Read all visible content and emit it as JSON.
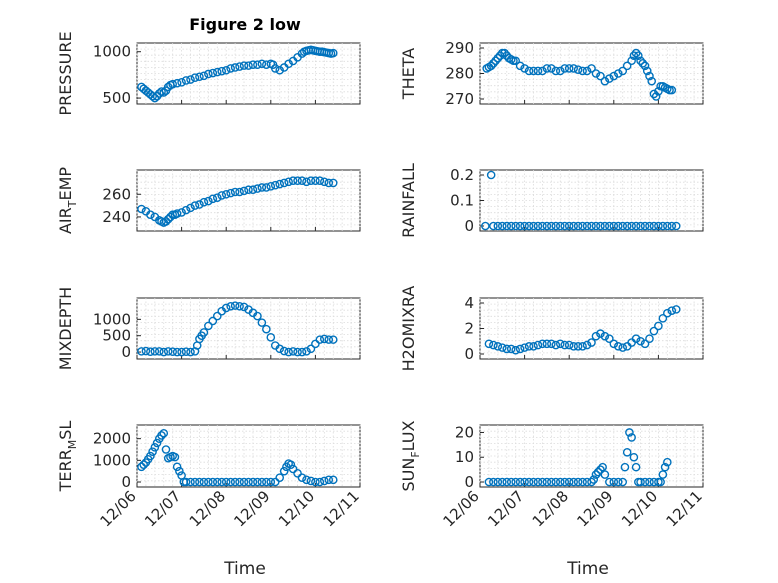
{
  "figure": {
    "title": "Figure 2 low",
    "marker_color": "#0072BD"
  },
  "x_axis": {
    "label": "Time",
    "tick_values": [
      0,
      1,
      2,
      3,
      4,
      5
    ],
    "tick_labels": [
      "12/06",
      "12/07",
      "12/08",
      "12/09",
      "12/10",
      "12/11"
    ],
    "range": [
      0,
      5
    ]
  },
  "chart_data": [
    {
      "type": "scatter",
      "ylabel": "PRESSURE",
      "ylabel_parts": [
        "PRESSURE"
      ],
      "ylim": [
        490,
        1040
      ],
      "yticks": [
        500,
        1000
      ],
      "x": [
        0.1,
        0.15,
        0.2,
        0.25,
        0.3,
        0.35,
        0.4,
        0.45,
        0.5,
        0.55,
        0.6,
        0.65,
        0.7,
        0.75,
        0.8,
        0.9,
        1.0,
        1.1,
        1.2,
        1.3,
        1.4,
        1.5,
        1.6,
        1.7,
        1.8,
        1.9,
        2.0,
        2.1,
        2.2,
        2.3,
        2.4,
        2.5,
        2.6,
        2.7,
        2.8,
        2.9,
        3.0,
        3.05,
        3.1,
        3.2,
        3.3,
        3.4,
        3.5,
        3.6,
        3.7,
        3.75,
        3.8,
        3.85,
        3.9,
        3.95,
        4.0,
        4.05,
        4.1,
        4.15,
        4.2,
        4.25,
        4.3,
        4.35,
        4.4
      ],
      "y": [
        620,
        600,
        580,
        560,
        540,
        520,
        500,
        520,
        550,
        570,
        560,
        580,
        620,
        640,
        650,
        660,
        670,
        690,
        700,
        720,
        730,
        740,
        760,
        770,
        780,
        790,
        800,
        820,
        830,
        840,
        850,
        850,
        860,
        860,
        870,
        860,
        870,
        860,
        820,
        800,
        830,
        870,
        900,
        940,
        980,
        1000,
        1010,
        1015,
        1020,
        1015,
        1010,
        1005,
        1000,
        1000,
        995,
        990,
        985,
        980,
        985
      ]
    },
    {
      "type": "scatter",
      "ylabel": "THETA",
      "ylabel_parts": [
        "THETA"
      ],
      "ylim": [
        270,
        290
      ],
      "yticks": [
        270,
        280,
        290
      ],
      "x": [
        0.15,
        0.2,
        0.25,
        0.3,
        0.35,
        0.4,
        0.45,
        0.5,
        0.55,
        0.6,
        0.65,
        0.7,
        0.75,
        0.8,
        0.9,
        1.0,
        1.1,
        1.2,
        1.3,
        1.4,
        1.5,
        1.6,
        1.7,
        1.8,
        1.9,
        2.0,
        2.1,
        2.2,
        2.3,
        2.4,
        2.5,
        2.6,
        2.7,
        2.8,
        2.9,
        3.0,
        3.1,
        3.2,
        3.3,
        3.4,
        3.45,
        3.5,
        3.55,
        3.6,
        3.65,
        3.7,
        3.75,
        3.8,
        3.85,
        3.9,
        3.95,
        4.0,
        4.05,
        4.1,
        4.15,
        4.2,
        4.25,
        4.3
      ],
      "y": [
        282,
        282.5,
        283,
        284,
        285,
        286,
        287,
        288,
        288,
        287,
        286,
        285.5,
        285,
        285,
        283,
        282,
        281,
        281,
        281,
        281,
        282,
        282,
        281,
        281,
        282,
        282,
        282,
        281.5,
        281,
        281,
        282,
        280,
        279,
        277,
        278,
        279,
        280,
        281,
        283,
        285,
        287,
        288,
        287,
        285,
        284,
        283,
        281,
        279,
        277,
        272,
        271,
        273,
        275,
        275,
        274.5,
        274,
        273.5,
        273.5
      ]
    },
    {
      "type": "scatter",
      "ylabel": "AIR_TEMP",
      "ylabel_parts": [
        "AIR",
        "T",
        "EMP"
      ],
      "ylim": [
        232,
        277
      ],
      "yticks": [
        240,
        260
      ],
      "x": [
        0.1,
        0.2,
        0.3,
        0.4,
        0.5,
        0.55,
        0.6,
        0.65,
        0.7,
        0.75,
        0.8,
        0.85,
        0.9,
        1.0,
        1.1,
        1.2,
        1.3,
        1.4,
        1.5,
        1.6,
        1.7,
        1.8,
        1.9,
        2.0,
        2.1,
        2.2,
        2.3,
        2.4,
        2.5,
        2.6,
        2.7,
        2.8,
        2.9,
        3.0,
        3.1,
        3.2,
        3.3,
        3.4,
        3.5,
        3.6,
        3.7,
        3.8,
        3.9,
        4.0,
        4.1,
        4.2,
        4.3,
        4.4
      ],
      "y": [
        247,
        245,
        242,
        240,
        237,
        236,
        235,
        236,
        238,
        240,
        242,
        242,
        243,
        244,
        246,
        248,
        250,
        251,
        253,
        254,
        256,
        257,
        259,
        260,
        261,
        262,
        262,
        263,
        264,
        264,
        265,
        266,
        266,
        267,
        268,
        269,
        270,
        271,
        272,
        272,
        272,
        271,
        272,
        272,
        272,
        271,
        270,
        270
      ]
    },
    {
      "type": "scatter",
      "ylabel": "RAINFALL",
      "ylabel_parts": [
        "RAINFALL"
      ],
      "ylim": [
        0,
        0.2
      ],
      "yticks": [
        0,
        0.1,
        0.2
      ],
      "x": [
        0.12,
        0.25,
        0.3,
        0.4,
        0.5,
        0.6,
        0.7,
        0.8,
        0.9,
        1.0,
        1.1,
        1.2,
        1.3,
        1.4,
        1.5,
        1.6,
        1.7,
        1.8,
        1.9,
        2.0,
        2.1,
        2.2,
        2.3,
        2.4,
        2.5,
        2.6,
        2.7,
        2.8,
        2.9,
        3.0,
        3.1,
        3.2,
        3.3,
        3.4,
        3.5,
        3.6,
        3.7,
        3.8,
        3.9,
        4.0,
        4.1,
        4.2,
        4.3,
        4.4
      ],
      "y": [
        0,
        0.2,
        0,
        0,
        0,
        0,
        0,
        0,
        0,
        0,
        0,
        0,
        0,
        0,
        0,
        0,
        0,
        0,
        0,
        0,
        0,
        0,
        0,
        0,
        0,
        0,
        0,
        0,
        0,
        0,
        0,
        0,
        0,
        0,
        0,
        0,
        0,
        0,
        0,
        0,
        0,
        0,
        0,
        0
      ]
    },
    {
      "type": "scatter",
      "ylabel": "MIXDEPTH",
      "ylabel_parts": [
        "MIXDEPTH"
      ],
      "ylim": [
        -60,
        1500
      ],
      "yticks": [
        0,
        500,
        1000
      ],
      "x": [
        0.1,
        0.2,
        0.3,
        0.4,
        0.5,
        0.6,
        0.7,
        0.8,
        0.9,
        1.0,
        1.1,
        1.2,
        1.3,
        1.35,
        1.4,
        1.45,
        1.5,
        1.6,
        1.7,
        1.8,
        1.9,
        2.0,
        2.1,
        2.2,
        2.3,
        2.4,
        2.5,
        2.6,
        2.7,
        2.8,
        2.9,
        3.0,
        3.1,
        3.2,
        3.3,
        3.4,
        3.5,
        3.6,
        3.7,
        3.8,
        3.9,
        4.0,
        4.1,
        4.2,
        4.3,
        4.4
      ],
      "y": [
        20,
        30,
        10,
        20,
        20,
        0,
        20,
        10,
        0,
        0,
        10,
        0,
        20,
        200,
        400,
        500,
        600,
        800,
        950,
        1100,
        1250,
        1350,
        1400,
        1420,
        1400,
        1380,
        1300,
        1200,
        1100,
        900,
        700,
        450,
        200,
        100,
        30,
        0,
        20,
        0,
        0,
        20,
        100,
        250,
        380,
        400,
        380,
        380
      ]
    },
    {
      "type": "scatter",
      "ylabel": "H2OMIXRA",
      "ylabel_parts": [
        "H2OMIXRA"
      ],
      "ylim": [
        0,
        4
      ],
      "yticks": [
        0,
        2,
        4
      ],
      "x": [
        0.2,
        0.3,
        0.4,
        0.5,
        0.6,
        0.7,
        0.8,
        0.9,
        1.0,
        1.1,
        1.2,
        1.3,
        1.4,
        1.5,
        1.6,
        1.7,
        1.8,
        1.9,
        2.0,
        2.1,
        2.2,
        2.3,
        2.4,
        2.5,
        2.6,
        2.7,
        2.8,
        2.9,
        3.0,
        3.1,
        3.2,
        3.3,
        3.4,
        3.5,
        3.6,
        3.7,
        3.8,
        3.9,
        4.0,
        4.1,
        4.2,
        4.3,
        4.4
      ],
      "y": [
        0.8,
        0.7,
        0.6,
        0.5,
        0.4,
        0.4,
        0.3,
        0.4,
        0.5,
        0.6,
        0.6,
        0.7,
        0.8,
        0.8,
        0.8,
        0.7,
        0.8,
        0.7,
        0.7,
        0.6,
        0.6,
        0.6,
        0.7,
        0.9,
        1.4,
        1.6,
        1.4,
        1.2,
        0.8,
        0.6,
        0.5,
        0.6,
        0.9,
        1.2,
        1.0,
        0.8,
        1.2,
        1.8,
        2.2,
        2.8,
        3.2,
        3.4,
        3.5
      ]
    },
    {
      "type": "scatter",
      "ylabel": "TERR_MSL",
      "ylabel_parts": [
        "TERR",
        "M",
        "SL"
      ],
      "ylim": [
        0,
        2400
      ],
      "yticks": [
        0,
        1000,
        2000
      ],
      "x": [
        0.1,
        0.15,
        0.2,
        0.25,
        0.3,
        0.35,
        0.4,
        0.45,
        0.5,
        0.55,
        0.6,
        0.65,
        0.7,
        0.75,
        0.8,
        0.85,
        0.9,
        0.95,
        1.0,
        1.05,
        1.1,
        1.2,
        1.3,
        1.4,
        1.5,
        1.6,
        1.7,
        1.8,
        1.9,
        2.0,
        2.1,
        2.2,
        2.3,
        2.4,
        2.5,
        2.6,
        2.7,
        2.8,
        2.9,
        3.0,
        3.1,
        3.2,
        3.3,
        3.35,
        3.4,
        3.45,
        3.5,
        3.6,
        3.7,
        3.8,
        3.9,
        4.0,
        4.1,
        4.2,
        4.3,
        4.4
      ],
      "y": [
        700,
        800,
        900,
        1050,
        1200,
        1400,
        1600,
        1800,
        2000,
        2150,
        2250,
        1500,
        1100,
        1150,
        1200,
        1150,
        700,
        500,
        300,
        0,
        0,
        0,
        0,
        0,
        0,
        0,
        0,
        0,
        0,
        0,
        0,
        0,
        0,
        0,
        0,
        0,
        0,
        0,
        0,
        0,
        0,
        200,
        500,
        700,
        850,
        800,
        600,
        400,
        200,
        100,
        50,
        0,
        0,
        50,
        100,
        100
      ]
    },
    {
      "type": "scatter",
      "ylabel": "SUN_FLUX",
      "ylabel_parts": [
        "SUN",
        "F",
        "LUX"
      ],
      "ylim": [
        0,
        21
      ],
      "yticks": [
        0,
        10,
        20
      ],
      "x": [
        0.2,
        0.3,
        0.4,
        0.5,
        0.6,
        0.7,
        0.8,
        0.9,
        1.0,
        1.1,
        1.2,
        1.3,
        1.4,
        1.5,
        1.6,
        1.7,
        1.8,
        1.9,
        2.0,
        2.1,
        2.2,
        2.3,
        2.4,
        2.5,
        2.55,
        2.6,
        2.65,
        2.7,
        2.75,
        2.8,
        2.9,
        3.0,
        3.1,
        3.2,
        3.25,
        3.3,
        3.35,
        3.4,
        3.45,
        3.5,
        3.55,
        3.6,
        3.7,
        3.8,
        3.9,
        4.0,
        4.05,
        4.1,
        4.15,
        4.2
      ],
      "y": [
        0,
        0,
        0,
        0,
        0,
        0,
        0,
        0,
        0,
        0,
        0,
        0,
        0,
        0,
        0,
        0,
        0,
        0,
        0,
        0,
        0,
        0,
        0,
        0,
        1,
        3,
        4,
        5,
        6,
        3,
        0,
        0,
        0,
        0,
        6,
        12,
        20,
        18,
        10,
        6,
        0,
        0,
        0,
        0,
        0,
        0,
        0,
        3,
        6,
        8
      ]
    }
  ]
}
